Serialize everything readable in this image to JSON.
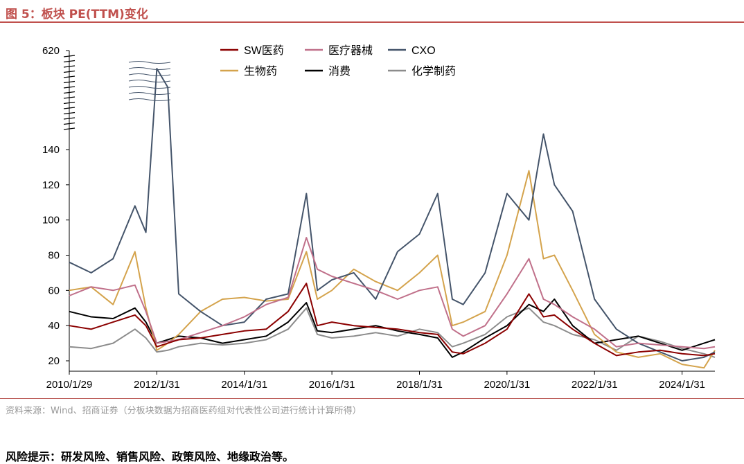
{
  "header": {
    "title": "图 5：板块 PE(TTM)变化"
  },
  "footer": {
    "source": "资料来源：Wind、招商证券（分板块数据为招商医药组对代表性公司进行统计计算所得）",
    "risk": "风险提示：研发风险、销售风险、政策风险、地缘政治等。"
  },
  "chart_data": {
    "type": "line",
    "title": "板块 PE(TTM)变化",
    "xlabel": "",
    "ylabel": "",
    "ylim": [
      15,
      145
    ],
    "y_ticks": [
      "20",
      "40",
      "60",
      "80",
      "100",
      "120",
      "140"
    ],
    "y_break_top_label": "620",
    "x_ticks": [
      "2010/1/29",
      "2012/1/31",
      "2014/1/31",
      "2016/1/31",
      "2018/1/31",
      "2020/1/31",
      "2022/1/31",
      "2024/1/31"
    ],
    "x": [
      "2010/1",
      "2010/7",
      "2011/1",
      "2011/7",
      "2011/10",
      "2012/1",
      "2012/4",
      "2012/7",
      "2013/1",
      "2013/7",
      "2014/1",
      "2014/7",
      "2015/1",
      "2015/6",
      "2015/9",
      "2016/1",
      "2016/7",
      "2017/1",
      "2017/7",
      "2018/1",
      "2018/6",
      "2018/10",
      "2019/1",
      "2019/7",
      "2020/1",
      "2020/7",
      "2020/11",
      "2021/2",
      "2021/7",
      "2022/1",
      "2022/7",
      "2023/1",
      "2023/7",
      "2024/1",
      "2024/7",
      "2024/10"
    ],
    "series": [
      {
        "name": "SW医药",
        "color": "#8b0000",
        "values": [
          40,
          38,
          42,
          46,
          40,
          28,
          30,
          32,
          33,
          35,
          37,
          38,
          48,
          64,
          40,
          42,
          40,
          39,
          38,
          36,
          35,
          25,
          24,
          30,
          38,
          58,
          45,
          46,
          38,
          30,
          23,
          25,
          26,
          24,
          23,
          24
        ]
      },
      {
        "name": "医疗器械",
        "color": "#c0708a",
        "values": [
          57,
          62,
          60,
          63,
          48,
          30,
          31,
          32,
          36,
          40,
          45,
          52,
          56,
          90,
          72,
          68,
          64,
          60,
          55,
          60,
          62,
          38,
          34,
          40,
          58,
          78,
          55,
          52,
          45,
          38,
          28,
          30,
          29,
          28,
          27,
          28
        ]
      },
      {
        "name": "CXO",
        "color": "#44546a",
        "values": [
          76,
          70,
          78,
          108,
          93,
          192,
          180,
          58,
          48,
          40,
          42,
          55,
          58,
          115,
          60,
          66,
          70,
          55,
          82,
          92,
          115,
          55,
          52,
          70,
          115,
          100,
          150,
          120,
          105,
          55,
          38,
          30,
          25,
          20,
          22,
          25
        ]
      },
      {
        "name": "生物药",
        "color": "#d4a34c",
        "values": [
          60,
          62,
          52,
          82,
          50,
          26,
          30,
          35,
          48,
          55,
          56,
          54,
          55,
          82,
          55,
          60,
          72,
          65,
          60,
          70,
          80,
          40,
          42,
          48,
          80,
          128,
          78,
          80,
          60,
          35,
          25,
          22,
          24,
          18,
          16,
          26
        ]
      },
      {
        "name": "消费",
        "color": "#000000",
        "values": [
          48,
          45,
          44,
          50,
          42,
          30,
          32,
          34,
          33,
          30,
          32,
          34,
          42,
          53,
          37,
          36,
          38,
          40,
          37,
          35,
          33,
          22,
          25,
          33,
          40,
          52,
          48,
          55,
          40,
          30,
          32,
          34,
          30,
          26,
          30,
          32
        ]
      },
      {
        "name": "化学制药",
        "color": "#8c8c8c",
        "values": [
          28,
          27,
          30,
          38,
          33,
          25,
          26,
          28,
          30,
          29,
          30,
          32,
          38,
          50,
          35,
          33,
          34,
          36,
          34,
          38,
          36,
          28,
          30,
          35,
          45,
          50,
          42,
          40,
          35,
          32,
          26,
          34,
          31,
          27,
          24,
          22
        ]
      }
    ],
    "legend_position": "top-center"
  }
}
